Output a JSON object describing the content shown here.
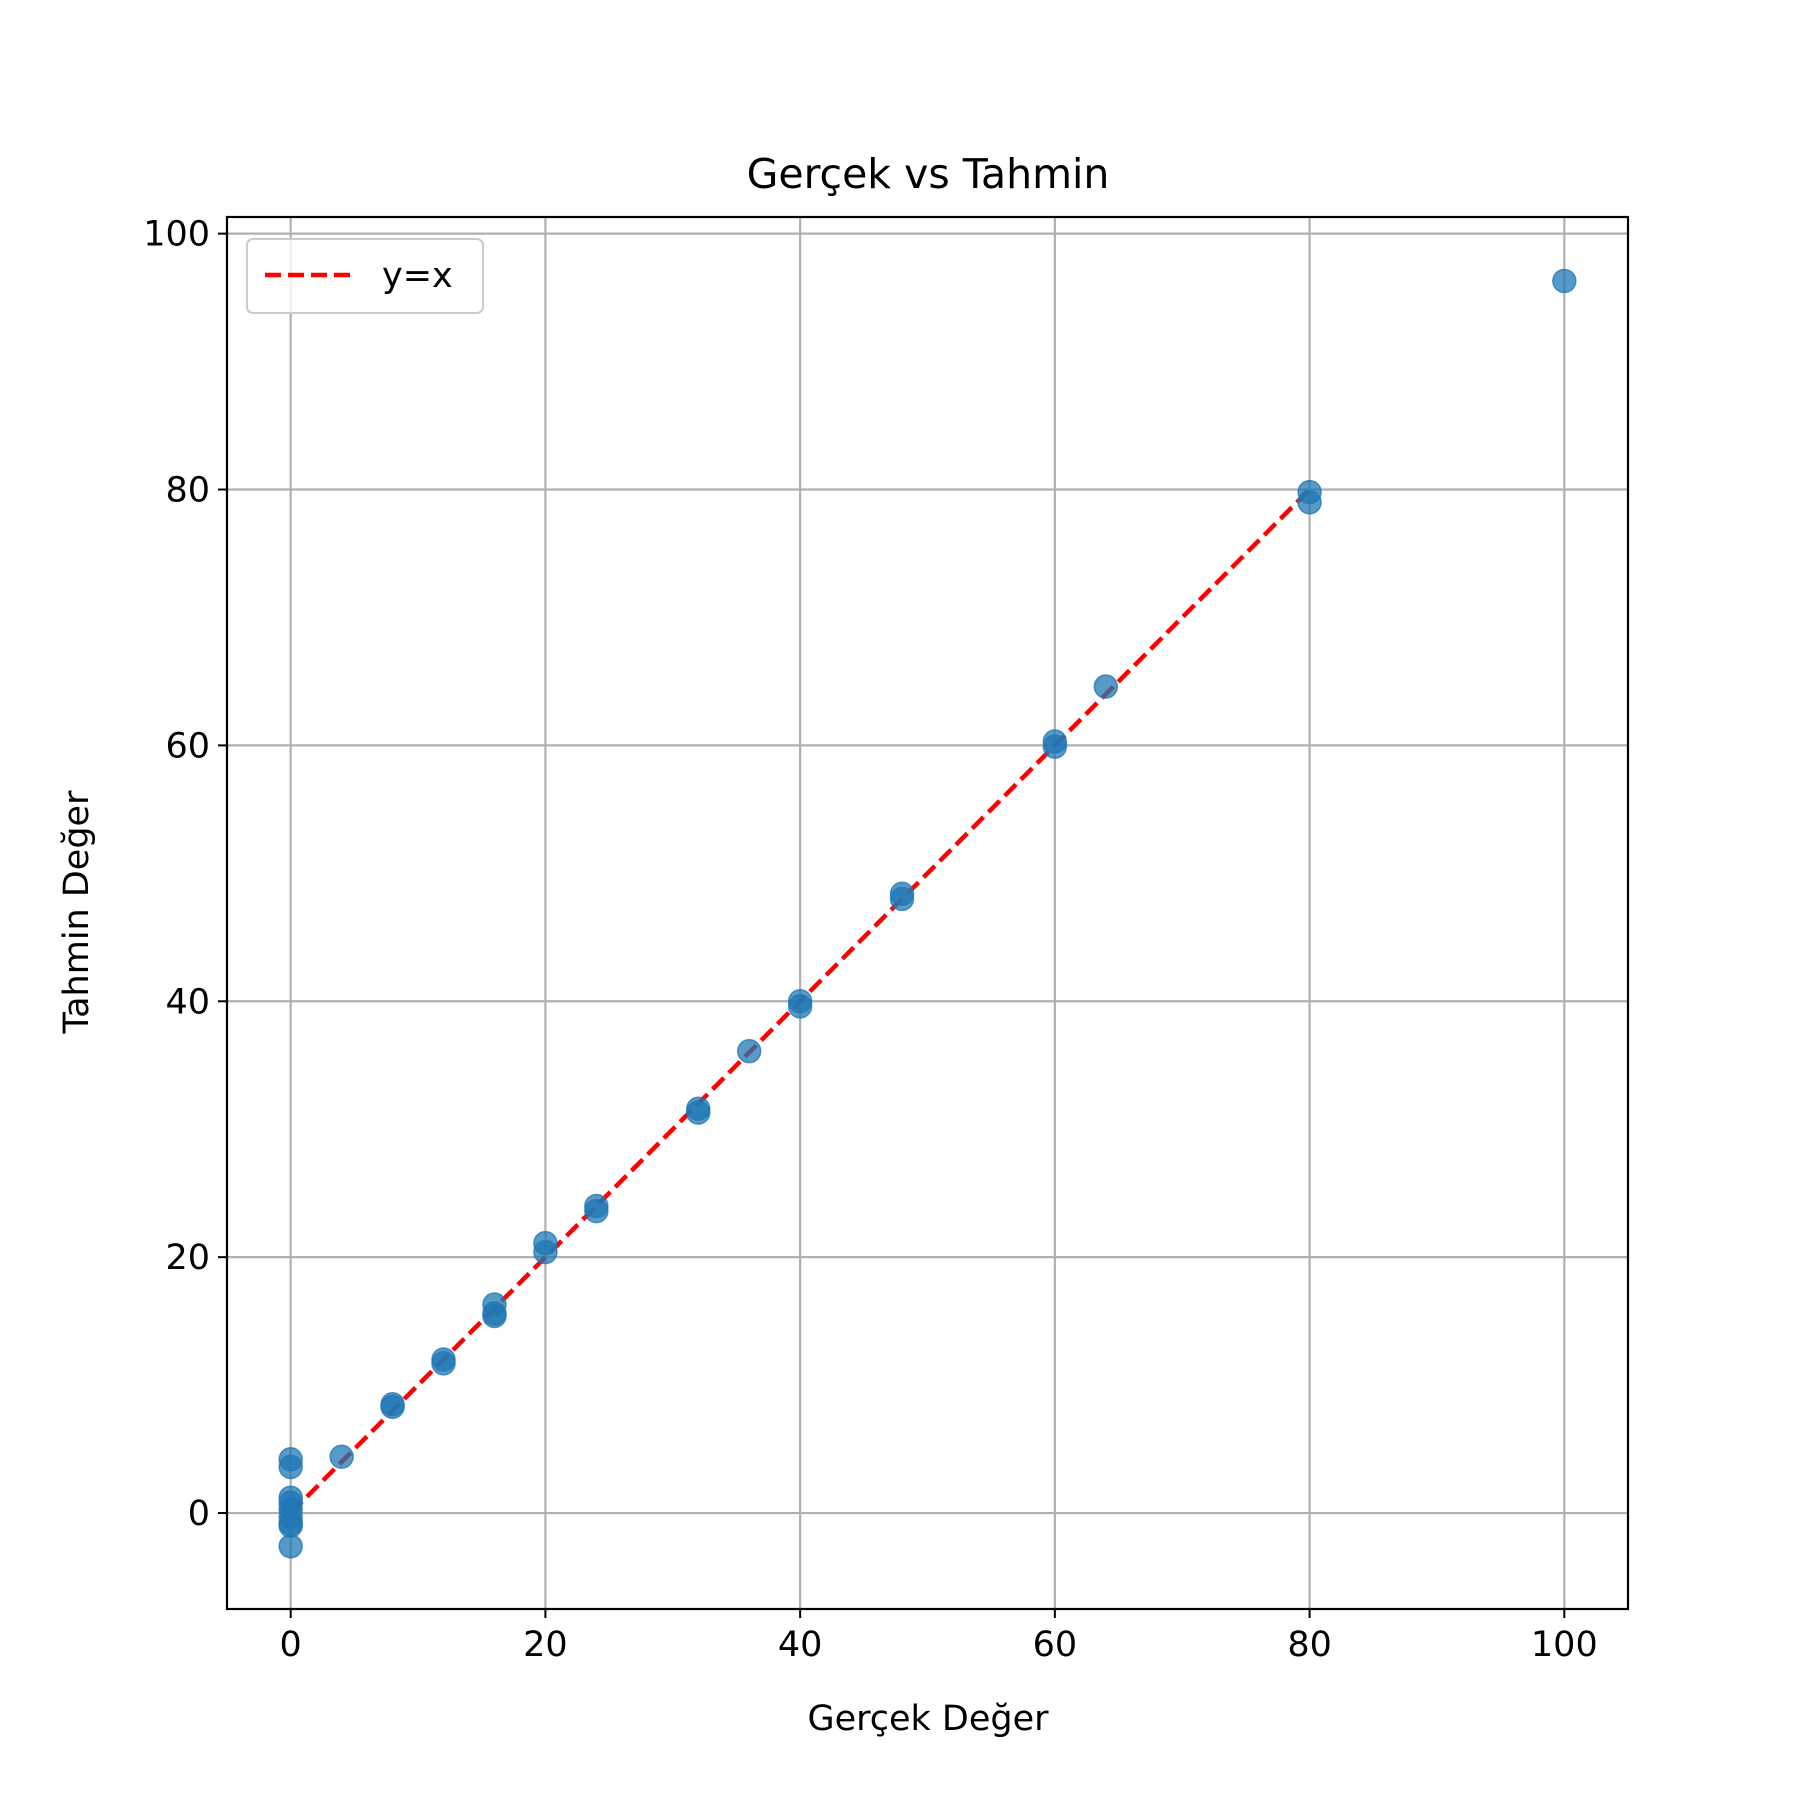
{
  "chart_data": {
    "type": "scatter",
    "title": "Gerçek vs Tahmin",
    "xlabel": "Gerçek Değer",
    "ylabel": "Tahmin Değer",
    "xlim": [
      -5,
      105
    ],
    "ylim": [
      -7.5,
      101.3
    ],
    "xticks": [
      0,
      20,
      40,
      60,
      80,
      100
    ],
    "yticks": [
      0,
      20,
      40,
      60,
      80,
      100
    ],
    "grid": true,
    "legend_position": "top-left",
    "series": [
      {
        "kind": "scatter",
        "color": "#1f77b4",
        "x": [
          0,
          0,
          0,
          0,
          0,
          0,
          0,
          0,
          0,
          4,
          8,
          8,
          12,
          12,
          16,
          16,
          16,
          20,
          20,
          24,
          24,
          32,
          32,
          36,
          40,
          40,
          48,
          48,
          60,
          60,
          64,
          80,
          80,
          100
        ],
        "y": [
          4.2,
          3.6,
          1.2,
          0.8,
          0.3,
          -0.3,
          -0.8,
          -1.0,
          -2.6,
          4.4,
          8.5,
          8.3,
          12.0,
          11.7,
          16.3,
          15.6,
          15.4,
          21.1,
          20.4,
          24.0,
          23.6,
          31.6,
          31.3,
          36.1,
          40.0,
          39.6,
          48.4,
          48.0,
          60.3,
          59.9,
          64.6,
          79.8,
          79.0,
          96.3
        ]
      },
      {
        "kind": "line",
        "name": "y=x",
        "color": "#ff0000",
        "style": "dashed",
        "x": [
          0,
          80
        ],
        "y": [
          0,
          80
        ]
      }
    ]
  }
}
